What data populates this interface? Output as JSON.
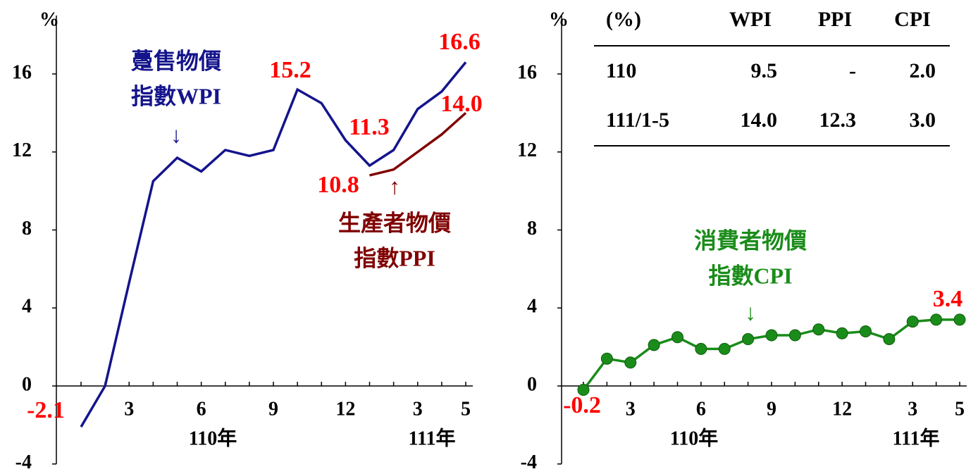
{
  "chart_data": [
    {
      "type": "line",
      "y_label": "%",
      "categories": [
        null,
        null,
        "3",
        null,
        null,
        "6",
        null,
        null,
        "9",
        null,
        null,
        "12",
        null,
        null,
        "3",
        null,
        "5"
      ],
      "year_labels": [
        "110年",
        "111年"
      ],
      "ylim": [
        -4,
        19
      ],
      "yticks": [
        -4,
        0,
        4,
        8,
        12,
        16
      ],
      "annotations": [
        "躉售物價",
        "指數WPI",
        "↓",
        "生產者物價",
        "指數PPI",
        "↑"
      ],
      "series": [
        {
          "name": "躉售物價指數WPI",
          "color": "#14148c",
          "values": [
            -2.1,
            0.0,
            5.3,
            10.5,
            11.7,
            11.0,
            12.1,
            11.8,
            12.1,
            15.2,
            14.5,
            12.6,
            11.3,
            12.1,
            14.2,
            15.1,
            16.6
          ],
          "value_labels": [
            "-2.1",
            null,
            null,
            null,
            null,
            null,
            null,
            null,
            null,
            "15.2",
            null,
            null,
            "11.3",
            null,
            null,
            null,
            "16.6"
          ]
        },
        {
          "name": "生產者物價指數PPI",
          "color": "#800000",
          "values": [
            null,
            null,
            null,
            null,
            null,
            null,
            null,
            null,
            null,
            null,
            null,
            null,
            10.8,
            11.1,
            12.0,
            12.9,
            14.0
          ],
          "value_labels": [
            null,
            null,
            null,
            null,
            null,
            null,
            null,
            null,
            null,
            null,
            null,
            null,
            "10.8",
            null,
            null,
            null,
            "14.0"
          ]
        }
      ]
    },
    {
      "type": "line",
      "y_label": "%",
      "markers": true,
      "categories": [
        null,
        null,
        "3",
        null,
        null,
        "6",
        null,
        null,
        "9",
        null,
        null,
        "12",
        null,
        null,
        "3",
        null,
        "5"
      ],
      "year_labels": [
        "110年",
        "111年"
      ],
      "ylim": [
        -4,
        19
      ],
      "yticks": [
        -4,
        0,
        4,
        8,
        12,
        16
      ],
      "annotations": [
        "消費者物價",
        "指數CPI",
        "↓"
      ],
      "series": [
        {
          "name": "消費者物價指數CPI",
          "color": "#1a8c1a",
          "values": [
            -0.2,
            1.4,
            1.2,
            2.1,
            2.5,
            1.9,
            1.9,
            2.4,
            2.6,
            2.6,
            2.9,
            2.7,
            2.8,
            2.4,
            3.3,
            3.4,
            3.4
          ],
          "value_labels": [
            "-0.2",
            null,
            null,
            null,
            null,
            null,
            null,
            null,
            null,
            null,
            null,
            null,
            null,
            null,
            null,
            null,
            "3.4"
          ]
        }
      ],
      "table": {
        "header": [
          "(%)",
          "WPI",
          "PPI",
          "CPI"
        ],
        "rows": [
          [
            "110",
            "9.5",
            "-",
            "2.0"
          ],
          [
            "111/1-5",
            "14.0",
            "12.3",
            "3.0"
          ]
        ]
      }
    }
  ]
}
